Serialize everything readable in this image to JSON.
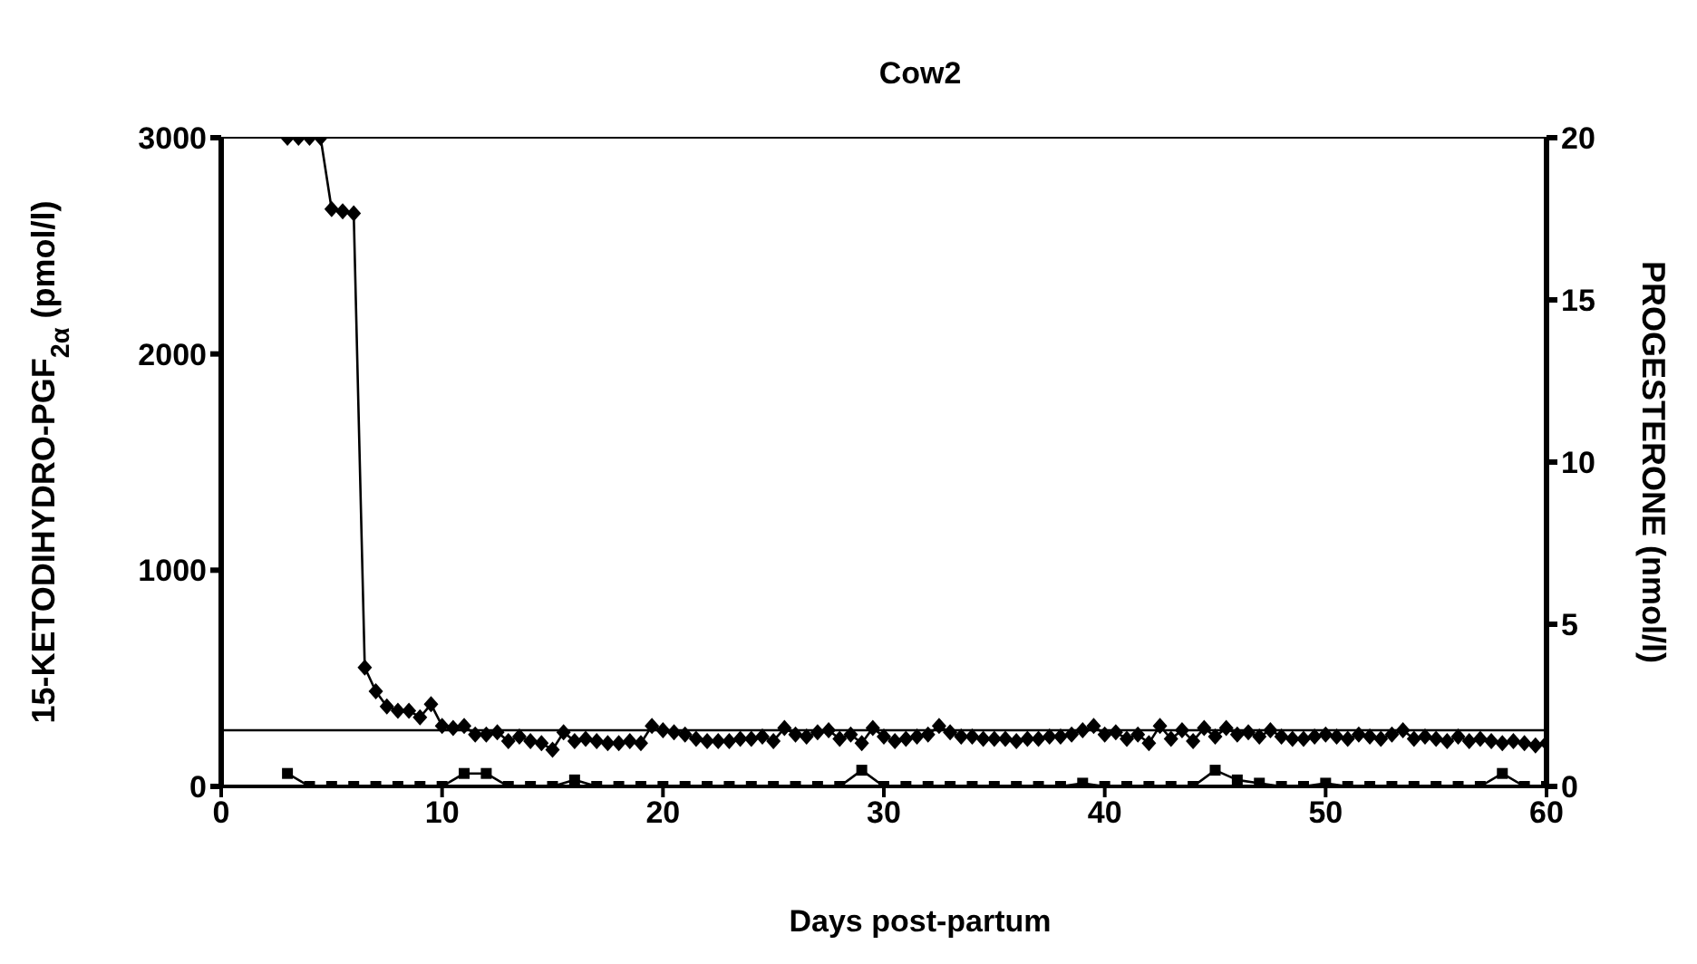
{
  "chart_data": {
    "type": "line",
    "title": "Cow2",
    "xlabel": "Days post-partum",
    "ylabel": "15-KETODIHYDRO-PGF$_{2α}$  (pmol/l)",
    "y2label": "PROGESTERONE (nmol/l)",
    "xlim": [
      0,
      60
    ],
    "xticks": [
      0,
      10,
      20,
      30,
      40,
      50,
      60
    ],
    "ylim": [
      0,
      3000
    ],
    "yticks": [
      0,
      1000,
      2000,
      3000
    ],
    "y2lim": [
      0,
      20
    ],
    "y2ticks": [
      0,
      5,
      10,
      15,
      20
    ],
    "ref_lines": [
      {
        "axis": "y",
        "value": 260,
        "color": "#000000"
      }
    ],
    "series": [
      {
        "color": "#000000",
        "marker": "diamond",
        "x": [
          3,
          3.5,
          4,
          4.5,
          5,
          5.5,
          6,
          6.5,
          7,
          7.5,
          8,
          8.5,
          9,
          9.5,
          10,
          10.5,
          11,
          11.5,
          12,
          12.5,
          13,
          13.5,
          14,
          14.5,
          15,
          15.5,
          16,
          16.5,
          17,
          17.5,
          18,
          18.5,
          19,
          19.5,
          20,
          20.5,
          21,
          21.5,
          22,
          22.5,
          23,
          23.5,
          24,
          24.5,
          25,
          25.5,
          26,
          26.5,
          27,
          27.5,
          28,
          28.5,
          29,
          29.5,
          30,
          30.5,
          31,
          31.5,
          32,
          32.5,
          33,
          33.5,
          34,
          34.5,
          35,
          35.5,
          36,
          36.5,
          37,
          37.5,
          38,
          38.5,
          39,
          39.5,
          40,
          40.5,
          41,
          41.5,
          42,
          42.5,
          43,
          43.5,
          44,
          44.5,
          45,
          45.5,
          46,
          46.5,
          47,
          47.5,
          48,
          48.5,
          49,
          49.5,
          50,
          50.5,
          51,
          51.5,
          52,
          52.5,
          53,
          53.5,
          54,
          54.5,
          55,
          55.5,
          56,
          56.5,
          57,
          57.5,
          58,
          58.5,
          59,
          59.5,
          60
        ],
        "values": [
          3000,
          3000,
          3000,
          3000,
          2670,
          2660,
          2650,
          550,
          440,
          370,
          350,
          350,
          320,
          380,
          280,
          270,
          280,
          240,
          240,
          250,
          210,
          230,
          210,
          200,
          170,
          250,
          210,
          220,
          210,
          200,
          200,
          210,
          200,
          280,
          260,
          250,
          240,
          220,
          210,
          210,
          210,
          220,
          220,
          230,
          210,
          270,
          240,
          230,
          250,
          260,
          220,
          240,
          200,
          270,
          230,
          210,
          220,
          230,
          240,
          280,
          250,
          230,
          230,
          220,
          220,
          220,
          210,
          220,
          220,
          230,
          230,
          240,
          260,
          280,
          240,
          250,
          220,
          240,
          200,
          280,
          220,
          260,
          210,
          270,
          230,
          270,
          240,
          250,
          230,
          260,
          230,
          220,
          220,
          230,
          240,
          230,
          220,
          240,
          230,
          220,
          240,
          260,
          220,
          230,
          220,
          210,
          230,
          210,
          220,
          210,
          200,
          210,
          200,
          190,
          200
        ]
      },
      {
        "color": "#000000",
        "marker": "square",
        "axis": "y2",
        "x": [
          3,
          4,
          5,
          6,
          7,
          8,
          9,
          10,
          11,
          12,
          13,
          14,
          15,
          16,
          17,
          18,
          19,
          20,
          21,
          22,
          23,
          24,
          25,
          26,
          27,
          28,
          29,
          30,
          31,
          32,
          33,
          34,
          35,
          36,
          37,
          38,
          39,
          40,
          41,
          42,
          43,
          44,
          45,
          46,
          47,
          48,
          49,
          50,
          51,
          52,
          53,
          54,
          55,
          56,
          57,
          58,
          59,
          60
        ],
        "values": [
          0.4,
          0,
          0,
          0,
          0,
          0,
          0,
          0,
          0.4,
          0.4,
          0,
          0,
          0,
          0.2,
          0,
          0,
          0,
          0,
          0,
          0,
          0,
          0,
          0,
          0,
          0,
          0,
          0.5,
          0,
          0,
          0,
          0,
          0,
          0,
          0,
          0,
          0,
          0.1,
          0,
          0,
          0,
          0,
          0,
          0.5,
          0.2,
          0.1,
          0,
          0,
          0.1,
          0,
          0,
          0,
          0,
          0,
          0,
          0,
          0.4,
          0,
          0
        ]
      }
    ]
  }
}
